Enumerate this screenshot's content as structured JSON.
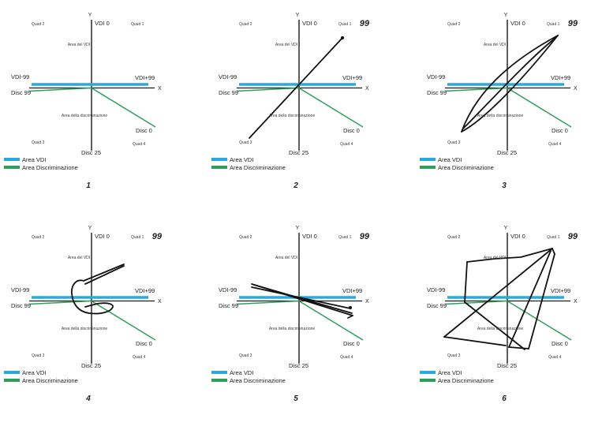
{
  "chart_data": {
    "type": "line",
    "description": "Six quadrant plots (X/Y axes) showing VDI and Discrimination reference lines with freehand session trajectories; panels numbered 1-6, panels 2-6 annotated with score 99",
    "grid": false,
    "legend_position": "bottom-left",
    "colors": {
      "vdi": "#29a9dc",
      "disc": "#2f9e5b",
      "axis": "#1a1a1a",
      "trajectory": "#121212"
    },
    "axes": {
      "x": "X",
      "y": "Y"
    },
    "labels": {
      "y_axis": "Y",
      "x_axis": "X",
      "vdi0": "VDI 0",
      "vdi_minus": "VDI-99",
      "vdi_plus": "VDI+99",
      "disc99": "Disc 99",
      "disc25": "Disc 25",
      "disc0": "Disc 0",
      "quad1": "Quad 1",
      "quad2": "Quad 2",
      "quad3": "Quad 3",
      "quad4": "Quad 4",
      "area_vdi": "Area del VDI",
      "area_disc": "Area della discriminazione"
    },
    "legend": {
      "vdi": "Area VDI",
      "disc": "Area Discriminazione"
    },
    "reference_lines": {
      "vdi_area": {
        "from": [
          40,
          107
        ],
        "to": [
          188,
          107
        ],
        "color": "#29a9dc"
      },
      "discrimination": {
        "points": [
          [
            37,
            115.5
          ],
          [
            116,
            111.5
          ],
          [
            197,
            161
          ]
        ],
        "color": "#2f9e5b"
      }
    },
    "panels": [
      {
        "number": "1",
        "score_label": null,
        "strokes": [],
        "dot": null
      },
      {
        "number": "2",
        "score_label": "99",
        "strokes": [
          "M53,175 L171,48"
        ],
        "dot": [
          171,
          48
        ]
      },
      {
        "number": "3",
        "score_label": "99",
        "strokes": [
          "M58,167 C75,120 115,80 180,45",
          "M180,45 C140,95 90,150 58,167",
          "M60,163 C95,128 140,78 177,48"
        ],
        "dot": null
      },
      {
        "number": "4",
        "score_label": "99",
        "strokes": [
          "M157,65 L106,86 C97,83 90,91 91,102 C92,115 99,125 113,127 C128,129 141,125 143,119 C144,115 135,113 123,115 L108,119",
          "M157,67 L108,90"
        ],
        "dot": null
      },
      {
        "number": "5",
        "score_label": "99",
        "strokes": [
          "M56,90 L184,130",
          "M56,94 L181,121",
          "M59,91 L183,127",
          "M184,130 L178,133"
        ],
        "dot": [
          181,
          120
        ]
      },
      {
        "number": "6",
        "score_label": "99",
        "strokes": [
          "M65,62 L100,58 L133,56 L173,45",
          "M65,62 L62,113",
          "M62,113 L138,173",
          "M36,157 L173,45",
          "M36,157 L114,168",
          "M118,170 L171,48",
          "M176,52 L143,172",
          "M173,45 L176,52",
          "M143,172 L118,170"
        ],
        "dot": null
      }
    ]
  }
}
